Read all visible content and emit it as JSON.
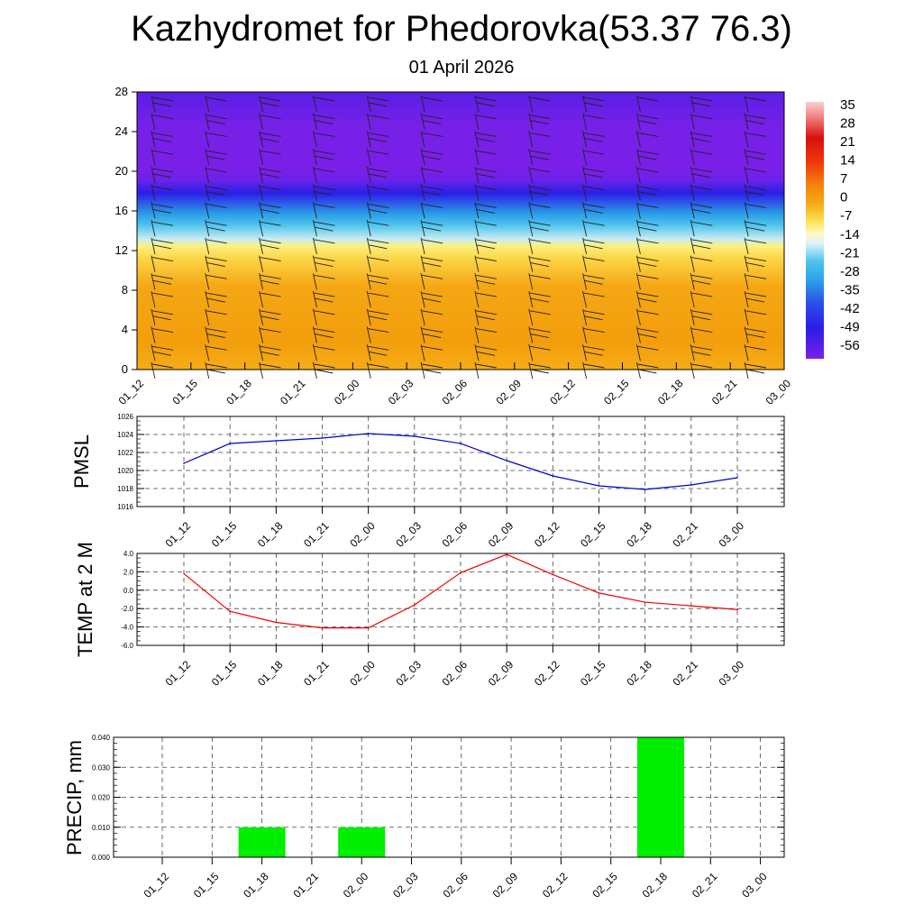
{
  "title": "Kazhydromet for Phedorovka(53.37 76.3)",
  "subtitle": "01 April 2026",
  "chart_data": [
    {
      "name": "temperature-wind-profile",
      "type": "heatmap",
      "x": [
        "01_12",
        "01_15",
        "01_18",
        "01_21",
        "02_00",
        "02_03",
        "02_06",
        "02_09",
        "02_12",
        "02_15",
        "02_18",
        "02_21",
        "03_00"
      ],
      "y_ticks": [
        0,
        4,
        8,
        12,
        16,
        20,
        24,
        28
      ],
      "ylim": [
        0,
        28
      ],
      "colorbar_labels": [
        "35",
        "28",
        "21",
        "14",
        "7",
        "0",
        "-7",
        "-14",
        "-21",
        "-28",
        "-35",
        "-42",
        "-49",
        "-56"
      ],
      "colors": {
        "purple": "#7b1fe8",
        "blue": "#2a1ee6",
        "cyan": "#29b6e6",
        "yellow": "#fde65a",
        "orange": "#f6a410",
        "red": "#d7100c"
      }
    },
    {
      "name": "pmsl",
      "type": "line",
      "ylabel": "PMSL",
      "x": [
        "01_12",
        "01_15",
        "01_18",
        "01_21",
        "02_00",
        "02_03",
        "02_06",
        "02_09",
        "02_12",
        "02_15",
        "02_18",
        "02_21",
        "03_00"
      ],
      "values": [
        1020.8,
        1023.0,
        1023.3,
        1023.6,
        1024.1,
        1023.8,
        1023.0,
        1021.1,
        1019.4,
        1018.3,
        1017.9,
        1018.4,
        1019.2
      ],
      "ylim": [
        1016,
        1026
      ],
      "y_ticks": [
        "1016",
        "1018",
        "1020",
        "1022",
        "1024",
        "1026"
      ],
      "color": "#0000cc"
    },
    {
      "name": "temp-2m",
      "type": "line",
      "ylabel": "TEMP at 2 M",
      "x": [
        "01_12",
        "01_15",
        "01_18",
        "01_21",
        "02_00",
        "02_03",
        "02_06",
        "02_09",
        "02_12",
        "02_15",
        "02_18",
        "02_21",
        "03_00"
      ],
      "values": [
        1.8,
        -2.3,
        -3.5,
        -4.1,
        -4.1,
        -1.6,
        1.9,
        3.9,
        1.7,
        -0.3,
        -1.3,
        -1.7,
        -2.1
      ],
      "ylim": [
        -6,
        4
      ],
      "y_ticks": [
        "-6.0",
        "-4.0",
        "-2.0",
        "0.0",
        "2.0",
        "4.0"
      ],
      "color": "#ee0000"
    },
    {
      "name": "precip",
      "type": "bar",
      "ylabel": "PRECIP, mm",
      "categories": [
        "01_12",
        "01_15",
        "01_18",
        "01_21",
        "02_00",
        "02_03",
        "02_06",
        "02_09",
        "02_12",
        "02_15",
        "02_18",
        "02_21",
        "03_00"
      ],
      "values": [
        0,
        0,
        0.01,
        0,
        0.01,
        0,
        0,
        0,
        0,
        0,
        0.04,
        0,
        0
      ],
      "ylim": [
        0,
        0.04
      ],
      "y_ticks": [
        "0.000",
        "0.010",
        "0.020",
        "0.030",
        "0.040"
      ],
      "color": "#00ee00"
    }
  ]
}
